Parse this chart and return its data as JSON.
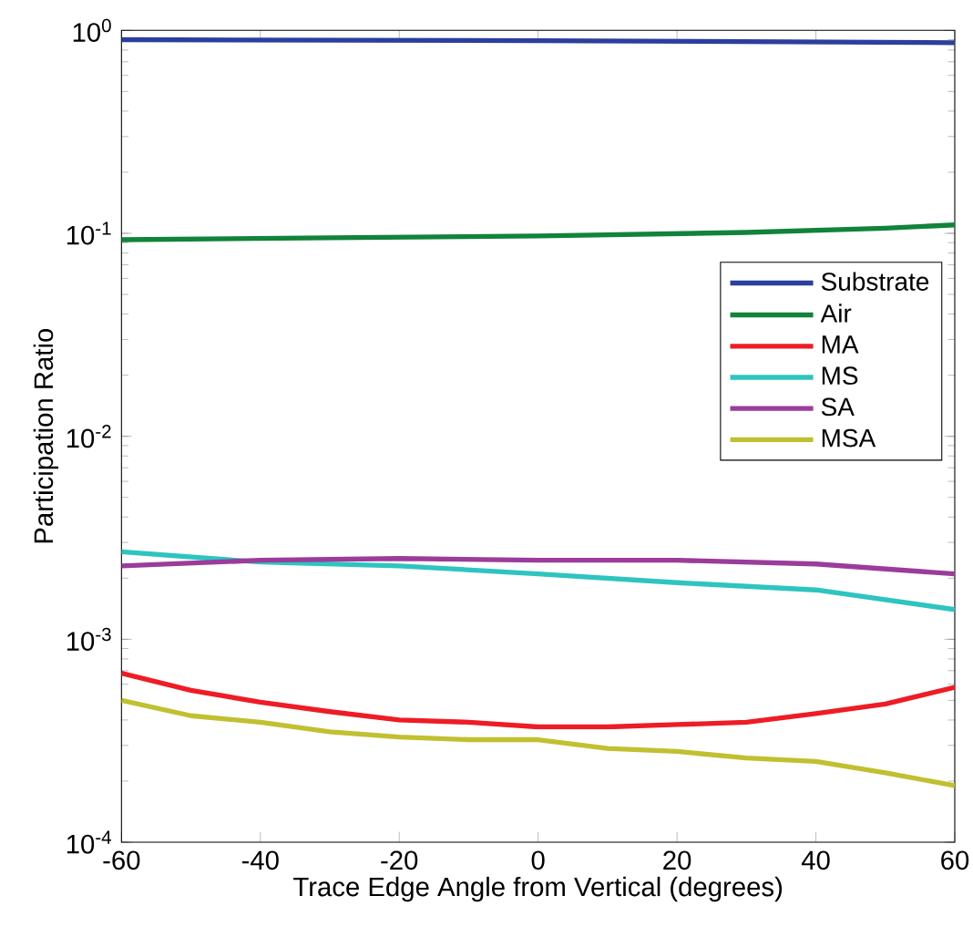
{
  "chart_data": {
    "type": "line",
    "xlabel": "Trace Edge Angle from Vertical (degrees)",
    "ylabel": "Participation Ratio",
    "log": "y",
    "xlim": [
      -60,
      60
    ],
    "xticks": [
      -60,
      -40,
      -20,
      0,
      20,
      40,
      60
    ],
    "ylim": [
      0.0001,
      1
    ],
    "yticks": [
      {
        "value": 0.0001,
        "label": "10$^{-4}$"
      },
      {
        "value": 0.001,
        "label": "10$^{-3}$"
      },
      {
        "value": 0.01,
        "label": "10$^{-2}$"
      },
      {
        "value": 0.1,
        "label": "10$^{-1}$"
      },
      {
        "value": 1,
        "label": "10$^{0}$"
      }
    ],
    "legend": "right",
    "grid": false,
    "marker": "none",
    "line_style": "solid",
    "series": [
      {
        "name": "Substrate",
        "color": "#2b3f9e",
        "x": [
          -60,
          0,
          60
        ],
        "values": [
          0.9,
          0.89,
          0.87
        ]
      },
      {
        "name": "Air",
        "color": "#11833a",
        "x": [
          -60,
          -30,
          0,
          30,
          50,
          60
        ],
        "values": [
          0.093,
          0.095,
          0.097,
          0.101,
          0.106,
          0.11
        ]
      },
      {
        "name": "MA",
        "color": "#ee1c25",
        "x": [
          -60,
          -50,
          -40,
          -30,
          -20,
          -10,
          0,
          10,
          20,
          30,
          40,
          50,
          60
        ],
        "values": [
          0.00068,
          0.00056,
          0.00049,
          0.00044,
          0.0004,
          0.00039,
          0.00037,
          0.00037,
          0.00038,
          0.00039,
          0.00043,
          0.00048,
          0.00058
        ]
      },
      {
        "name": "MS",
        "color": "#2ec4c0",
        "x": [
          -60,
          -40,
          -20,
          0,
          20,
          40,
          60
        ],
        "values": [
          0.0027,
          0.0024,
          0.0023,
          0.0021,
          0.0019,
          0.00175,
          0.0014
        ]
      },
      {
        "name": "SA",
        "color": "#9b3c9b",
        "x": [
          -60,
          -40,
          -20,
          0,
          20,
          40,
          60
        ],
        "values": [
          0.0023,
          0.00245,
          0.0025,
          0.00245,
          0.00245,
          0.00235,
          0.0021
        ]
      },
      {
        "name": "MSA",
        "color": "#c0c030",
        "x": [
          -60,
          -50,
          -40,
          -30,
          -20,
          -10,
          0,
          10,
          20,
          30,
          40,
          50,
          60
        ],
        "values": [
          0.0005,
          0.00042,
          0.00039,
          0.00035,
          0.00033,
          0.00032,
          0.00032,
          0.00029,
          0.00028,
          0.00026,
          0.00025,
          0.00022,
          0.00019
        ]
      }
    ]
  }
}
